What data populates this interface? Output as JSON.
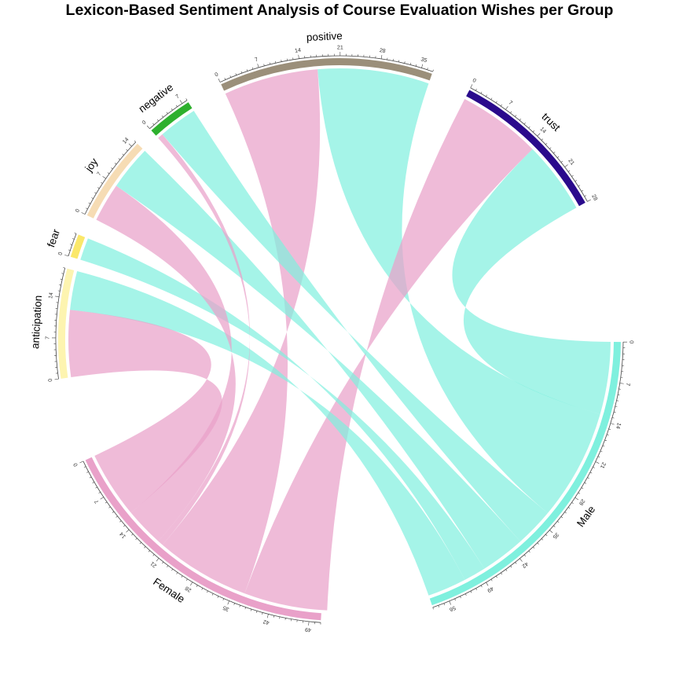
{
  "chart_data": {
    "type": "chord",
    "title": "Lexicon-Based Sentiment Analysis of Course Evaluation Wishes per Group",
    "sectors": [
      {
        "name": "positive",
        "total": 37,
        "color": "#9b8f7a",
        "ticks": [
          "0",
          "7",
          "14",
          "21",
          "28",
          "35"
        ]
      },
      {
        "name": "trust",
        "total": 28,
        "color": "#2a0a8c",
        "ticks": [
          "0",
          "7",
          "14",
          "21",
          "28"
        ]
      },
      {
        "name": "Male",
        "total": 59,
        "color": "#7ff0de",
        "ticks": [
          "0",
          "7",
          "14",
          "21",
          "28",
          "35",
          "42",
          "49",
          "56"
        ]
      },
      {
        "name": "Female",
        "total": 51,
        "color": "#e9a1c9",
        "ticks": [
          "0",
          "7",
          "14",
          "21",
          "28",
          "35",
          "42",
          "49"
        ]
      },
      {
        "name": "anticipation",
        "total": 19,
        "color": "#fdf4b0",
        "ticks": [
          "0",
          "7",
          "14"
        ]
      },
      {
        "name": "fear",
        "total": 4,
        "color": "#fbe86a",
        "ticks": [
          "0"
        ]
      },
      {
        "name": "joy",
        "total": 15,
        "color": "#f6dcb4",
        "ticks": [
          "0",
          "7",
          "14"
        ]
      },
      {
        "name": "negative",
        "total": 8,
        "color": "#2eb02e",
        "ticks": [
          "0",
          "7"
        ]
      }
    ],
    "groups": [
      "Male",
      "Female"
    ],
    "links": [
      {
        "group": "Male",
        "emotion": "positive",
        "value": 20
      },
      {
        "group": "Female",
        "emotion": "positive",
        "value": 17
      },
      {
        "group": "Male",
        "emotion": "trust",
        "value": 13
      },
      {
        "group": "Female",
        "emotion": "trust",
        "value": 15
      },
      {
        "group": "Male",
        "emotion": "anticipation",
        "value": 7
      },
      {
        "group": "Female",
        "emotion": "anticipation",
        "value": 12
      },
      {
        "group": "Male",
        "emotion": "fear",
        "value": 4
      },
      {
        "group": "Female",
        "emotion": "fear",
        "value": 0
      },
      {
        "group": "Male",
        "emotion": "joy",
        "value": 8
      },
      {
        "group": "Female",
        "emotion": "joy",
        "value": 7
      },
      {
        "group": "Male",
        "emotion": "negative",
        "value": 7
      },
      {
        "group": "Female",
        "emotion": "negative",
        "value": 1
      }
    ]
  }
}
